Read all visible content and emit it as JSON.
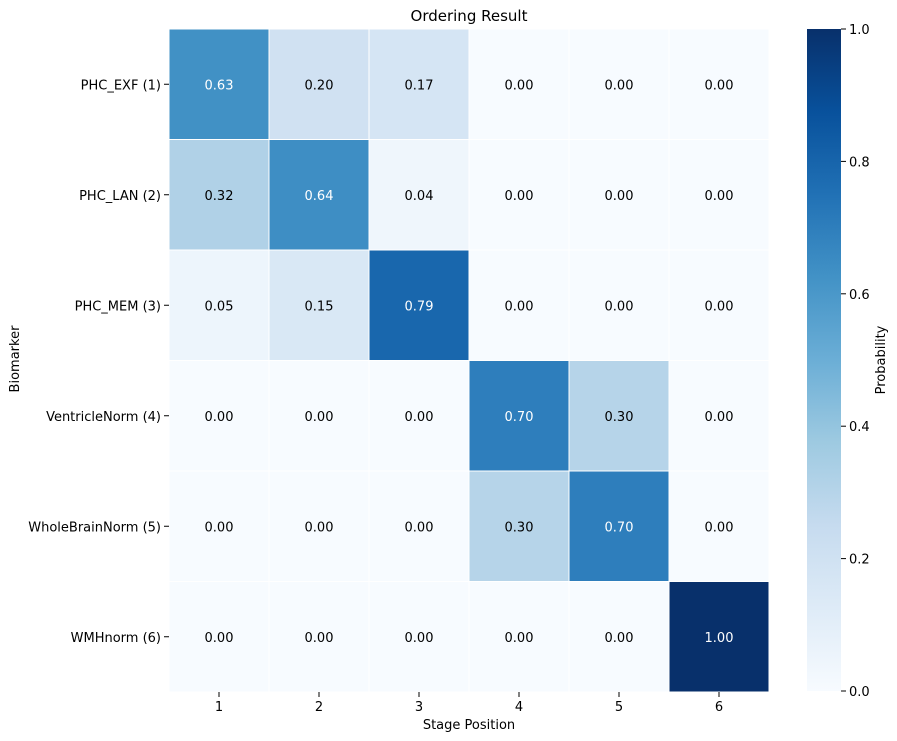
{
  "chart_data": {
    "type": "heatmap",
    "title": "Ordering Result",
    "xlabel": "Stage Position",
    "ylabel": "Biomarker",
    "x_categories": [
      "1",
      "2",
      "3",
      "4",
      "5",
      "6"
    ],
    "y_categories": [
      "PHC_EXF (1)",
      "PHC_LAN (2)",
      "PHC_MEM (3)",
      "VentricleNorm (4)",
      "WholeBrainNorm (5)",
      "WMHnorm (6)"
    ],
    "values": [
      [
        0.63,
        0.2,
        0.17,
        0.0,
        0.0,
        0.0
      ],
      [
        0.32,
        0.64,
        0.04,
        0.0,
        0.0,
        0.0
      ],
      [
        0.05,
        0.15,
        0.79,
        0.0,
        0.0,
        0.0
      ],
      [
        0.0,
        0.0,
        0.0,
        0.7,
        0.3,
        0.0
      ],
      [
        0.0,
        0.0,
        0.0,
        0.3,
        0.7,
        0.0
      ],
      [
        0.0,
        0.0,
        0.0,
        0.0,
        0.0,
        1.0
      ]
    ],
    "colorbar": {
      "label": "Probability",
      "range": [
        0.0,
        1.0
      ],
      "ticks": [
        "0.0",
        "0.2",
        "0.4",
        "0.6",
        "0.8",
        "1.0"
      ]
    },
    "colormap": "Blues",
    "colormap_stops": [
      "#f7fbff",
      "#deebf7",
      "#c6dbef",
      "#9ecae1",
      "#6baed6",
      "#4292c6",
      "#2171b5",
      "#08519c",
      "#08306b"
    ],
    "annotation_format": "2 decimals",
    "grid": false
  }
}
